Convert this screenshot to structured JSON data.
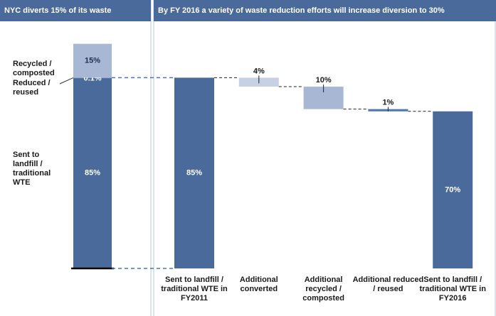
{
  "chart_data": [
    {
      "type": "stacked_bar",
      "title": "NYC diverts 15% of its waste",
      "categories": [
        null
      ],
      "series": [
        {
          "name": "Sent to landfill / traditional WTE",
          "color": "#4a6a9b",
          "values": [
            85
          ],
          "value_labels": [
            "85%"
          ]
        },
        {
          "name": "Reduced / reused",
          "color": "#8fa4c8",
          "values": [
            0.1
          ],
          "value_labels": [
            "0.1%"
          ]
        },
        {
          "name": "Recycled / composted",
          "color": "#a7b7d4",
          "values": [
            15
          ],
          "value_labels": [
            "15%"
          ]
        }
      ],
      "ylim": [
        0,
        100
      ]
    },
    {
      "type": "waterfall",
      "title": "By FY 2016 a variety of waste reduction efforts will increase diversion to 30%",
      "categories": [
        "Sent to landfill / traditional WTE in FY2011",
        "Additional converted",
        "Additional recycled / composted",
        "Additional reduced / reused",
        "Sent to landfill / traditional WTE in FY2016"
      ],
      "values": [
        85,
        4,
        10,
        1,
        70
      ],
      "value_labels": [
        "85%",
        "4%",
        "10%",
        "1%",
        "70%"
      ],
      "measure": [
        "total",
        "decrease",
        "decrease",
        "decrease",
        "total"
      ],
      "colors": [
        "#4a6a9b",
        "#c6d1e5",
        "#a7b7d4",
        "#4f78b5",
        "#4a6a9b"
      ],
      "ylim": [
        0,
        100
      ]
    }
  ]
}
